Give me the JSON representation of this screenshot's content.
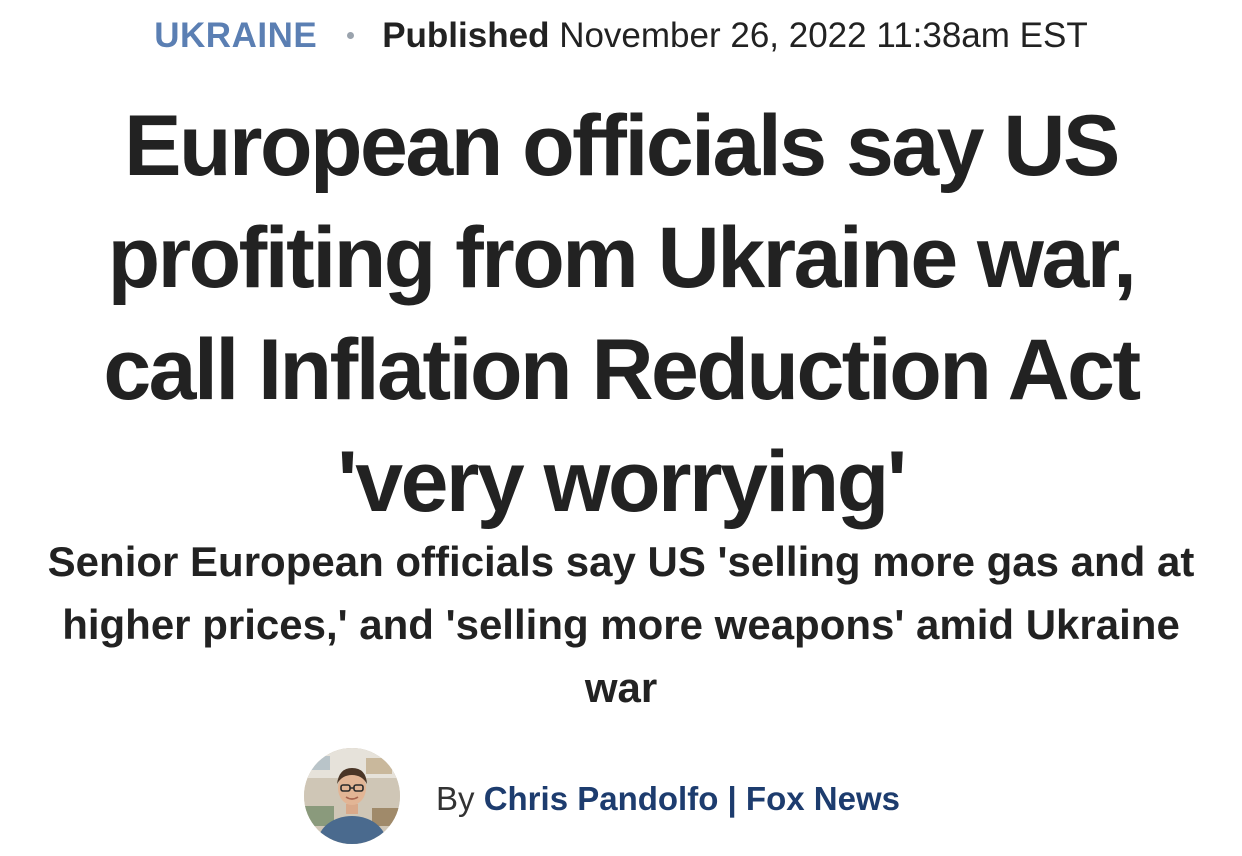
{
  "meta": {
    "category": "UKRAINE",
    "published_label": "Published",
    "published_date": "November 26, 2022 11:38am EST"
  },
  "headline": "European officials say US profiting from Ukraine war, call Inflation Reduction Act 'very worrying'",
  "subheadline": "Senior European officials say US 'selling more gas and at higher prices,' and 'selling more weapons' amid Ukraine war",
  "byline": {
    "by_label": "By",
    "author": "Chris Pandolfo | Fox News",
    "avatar_icon": "author-avatar-photo"
  },
  "colors": {
    "category": "#5b7fb3",
    "author": "#1d3c6e",
    "text": "#222222"
  }
}
